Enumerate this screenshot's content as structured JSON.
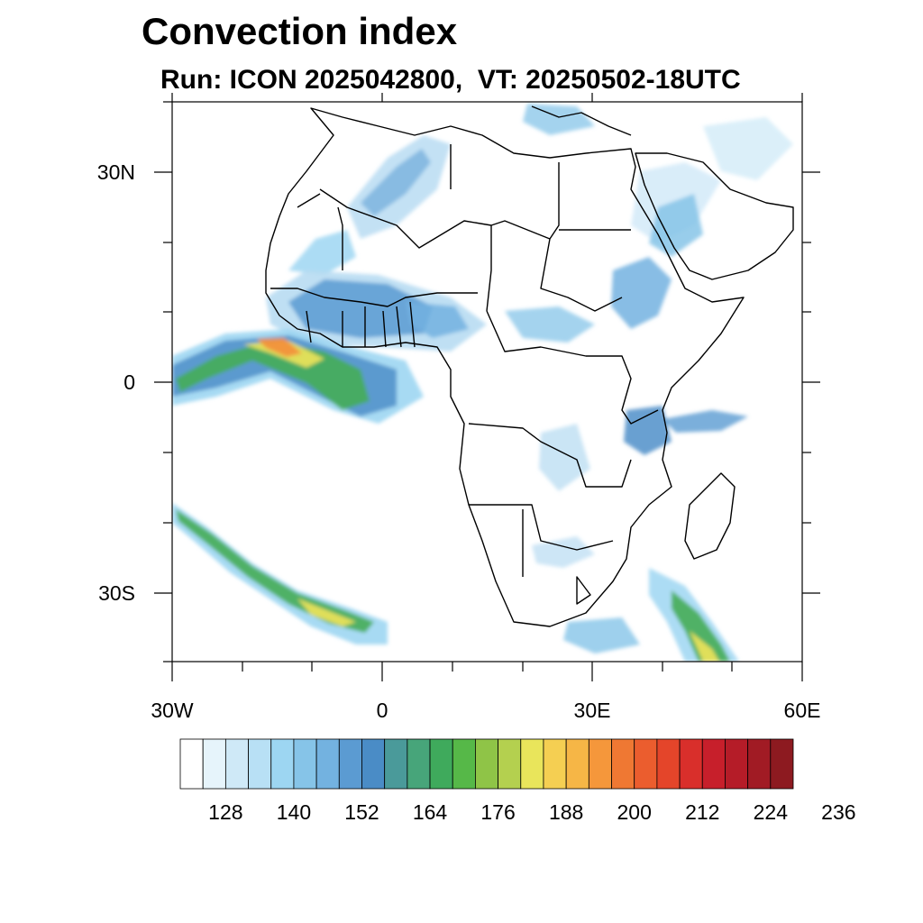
{
  "title": "Convection index",
  "subtitle": "Run: ICON 2025042800,  VT: 20250502-18UTC",
  "axes": {
    "lat_labels": [
      "30N",
      "0",
      "30S"
    ],
    "lon_labels": [
      "30W",
      "0",
      "30E",
      "60E"
    ],
    "lon_range": [
      -30,
      60
    ],
    "lat_range": [
      -40,
      40
    ]
  },
  "colorbar": {
    "labels": [
      "128",
      "140",
      "152",
      "164",
      "176",
      "188",
      "200",
      "212",
      "224",
      "236"
    ],
    "colors": [
      "#ffffff",
      "#e6f4fb",
      "#cfe9f7",
      "#b8e0f5",
      "#9dd6f2",
      "#86c4e8",
      "#73b2e0",
      "#5b9bd2",
      "#4a8cc6",
      "#4a9a9a",
      "#47a57a",
      "#3faa5c",
      "#56b848",
      "#8fc447",
      "#b4d04f",
      "#e9e55b",
      "#f5cf52",
      "#f6b646",
      "#f5973b",
      "#ef7833",
      "#eb5d2e",
      "#e4452a",
      "#d92f2b",
      "#c71f2b",
      "#b51c28",
      "#a11b24",
      "#8d1a20"
    ]
  },
  "colors": {
    "light": "#b8dcf2",
    "mid": "#7ab3de",
    "blue": "#4f8fc9",
    "teal": "#4a9f8c",
    "green": "#46ad58",
    "yellow": "#e8e25a",
    "orange": "#f2913b",
    "red": "#d9312b"
  }
}
